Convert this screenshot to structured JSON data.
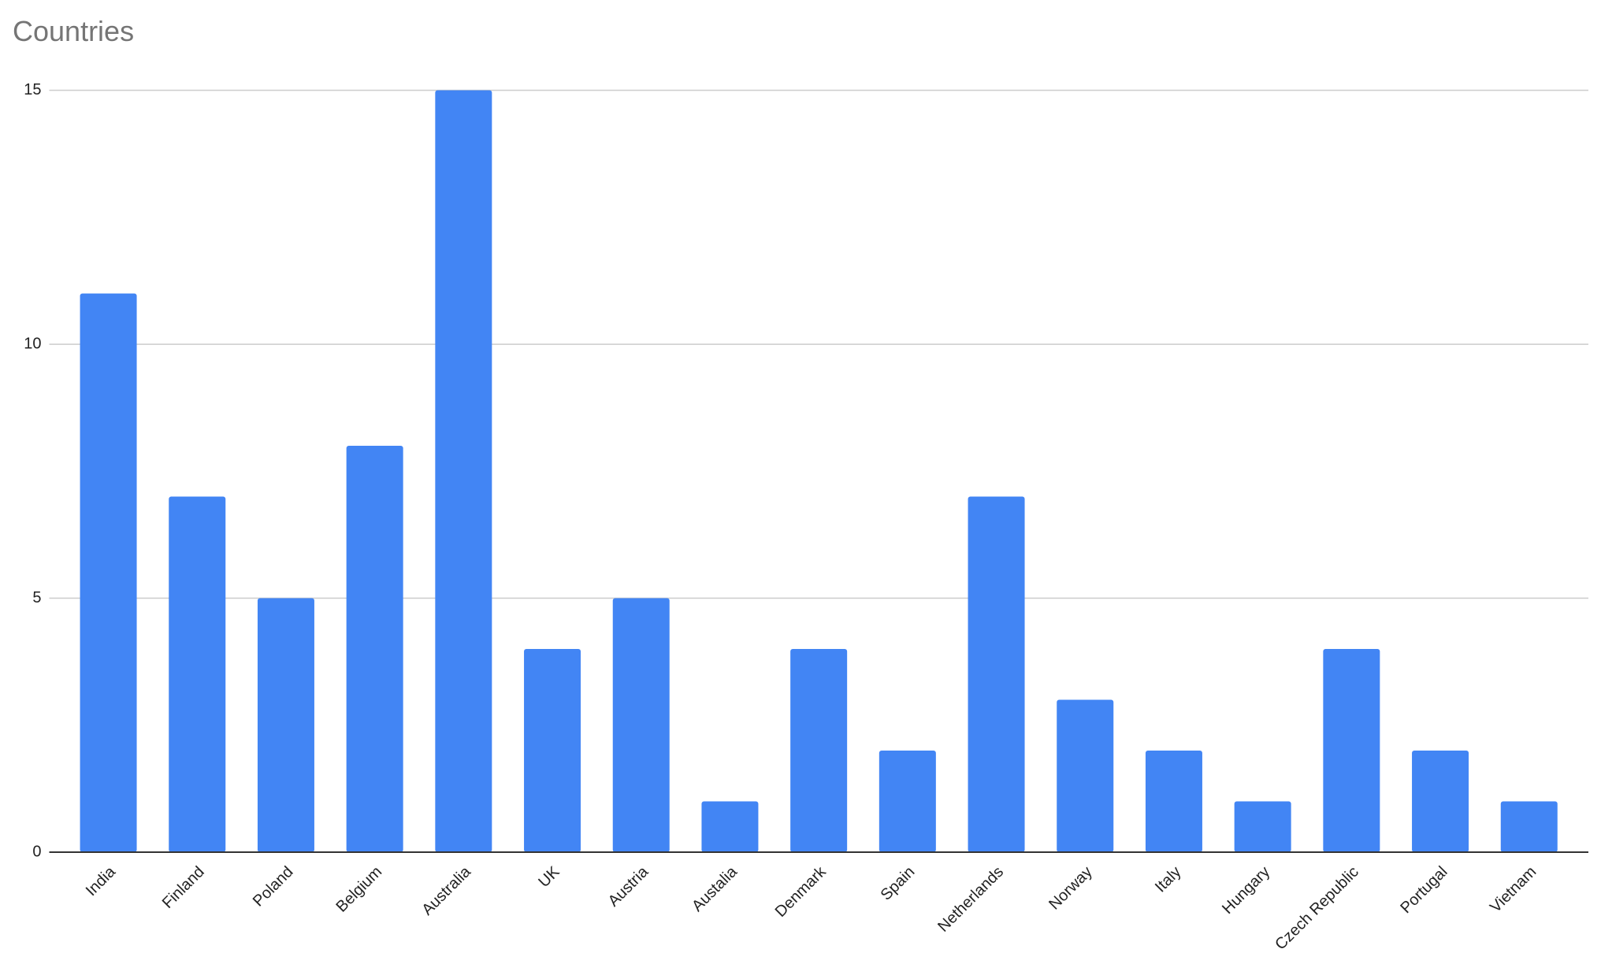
{
  "chart_data": {
    "type": "bar",
    "title": "Countries",
    "categories": [
      "India",
      "Finland",
      "Poland",
      "Belgium",
      "Australia",
      "UK",
      "Austria",
      "Austalia",
      "Denmark",
      "Spain",
      "Netherlands",
      "Norway",
      "Italy",
      "Hungary",
      "Czech Republic",
      "Portugal",
      "Vietnam"
    ],
    "values": [
      11,
      7,
      5,
      8,
      15,
      4,
      5,
      1,
      4,
      2,
      7,
      3,
      2,
      1,
      4,
      2,
      1
    ],
    "color": "#4285f4",
    "ylim": [
      0,
      15
    ],
    "yticks": [
      0,
      5,
      10,
      15
    ],
    "grid": true
  }
}
